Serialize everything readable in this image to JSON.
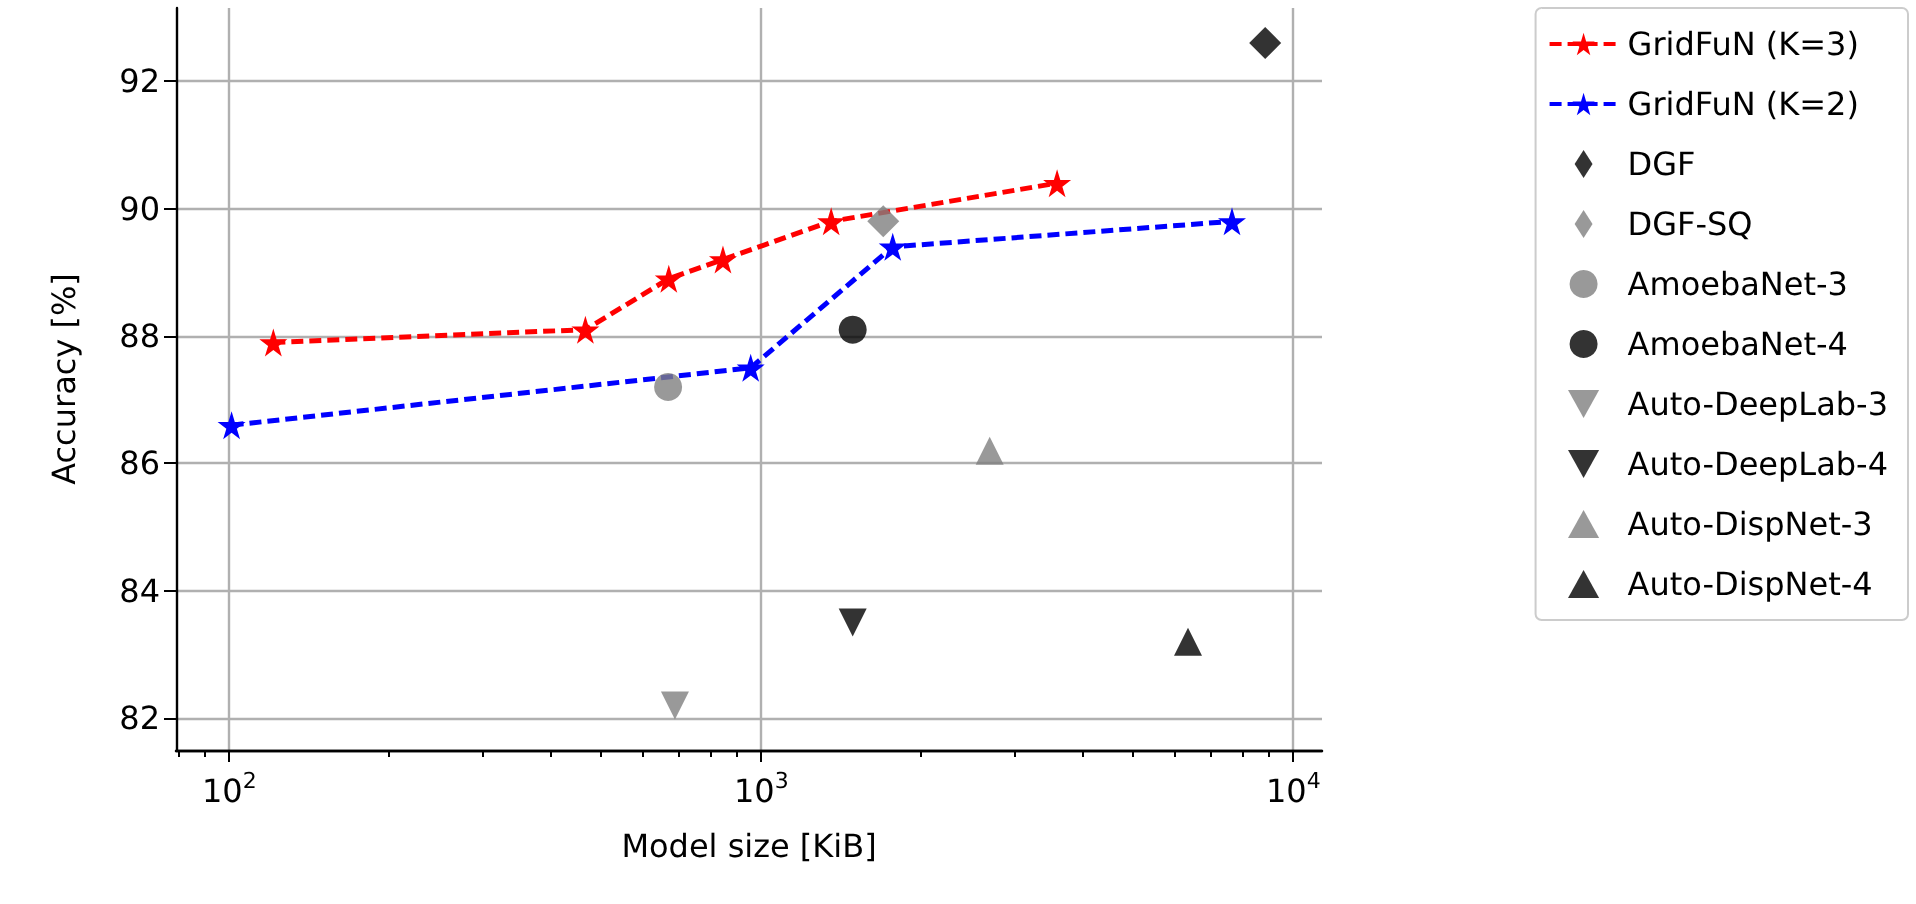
{
  "chart_data": {
    "type": "line",
    "xlabel": "Model size [KiB]",
    "ylabel": "Accuracy [%]",
    "log": "x",
    "grid": true,
    "legend": "right",
    "xlim": [
      79.4,
      11320
    ],
    "ylim": [
      81.5,
      93.15
    ],
    "xticks": [
      {
        "value": 100,
        "label": "10$^{2}$"
      },
      {
        "value": 1000,
        "label": "10$^{3}$"
      },
      {
        "value": 10000,
        "label": "10$^{4}$"
      }
    ],
    "yticks": [
      82,
      84,
      86,
      88,
      90,
      92
    ],
    "series": [
      {
        "name": "GridFuN (K=3)",
        "color": "#ff0000",
        "marker": "star",
        "line_style": "dashed",
        "x": [
          121,
          467,
          670,
          847,
          1353,
          3597
        ],
        "values": [
          87.9,
          88.1,
          88.9,
          89.2,
          89.8,
          90.4
        ]
      },
      {
        "name": "GridFuN (K=2)",
        "color": "#0000ff",
        "marker": "star",
        "line_style": "dashed",
        "x": [
          101,
          955,
          1766,
          7668
        ],
        "values": [
          86.6,
          87.5,
          89.4,
          89.8
        ]
      },
      {
        "name": "DGF",
        "type": "scatter",
        "color": "#000000",
        "marker": "diamond",
        "x": [
          8853
        ],
        "values": [
          92.6
        ]
      },
      {
        "name": "DGF-SQ",
        "type": "scatter",
        "color": "#808080",
        "marker": "diamond",
        "x": [
          1695
        ],
        "values": [
          89.8
        ]
      },
      {
        "name": "AmoebaNet-3",
        "type": "scatter",
        "color": "#808080",
        "marker": "circle",
        "x": [
          668
        ],
        "values": [
          87.2
        ]
      },
      {
        "name": "AmoebaNet-4",
        "type": "scatter",
        "color": "#000000",
        "marker": "circle",
        "x": [
          1485
        ],
        "values": [
          88.1
        ]
      },
      {
        "name": "Auto-DeepLab-3",
        "type": "scatter",
        "color": "#808080",
        "marker": "triangle-down",
        "x": [
          688
        ],
        "values": [
          82.2
        ]
      },
      {
        "name": "Auto-DeepLab-4",
        "type": "scatter",
        "color": "#000000",
        "marker": "triangle-down",
        "x": [
          1485
        ],
        "values": [
          83.5
        ]
      },
      {
        "name": "Auto-DispNet-3",
        "type": "scatter",
        "color": "#808080",
        "marker": "triangle",
        "x": [
          2687
        ],
        "values": [
          86.2
        ]
      },
      {
        "name": "Auto-DispNet-4",
        "type": "scatter",
        "color": "#000000",
        "marker": "triangle",
        "x": [
          6339
        ],
        "values": [
          83.2
        ]
      }
    ]
  }
}
